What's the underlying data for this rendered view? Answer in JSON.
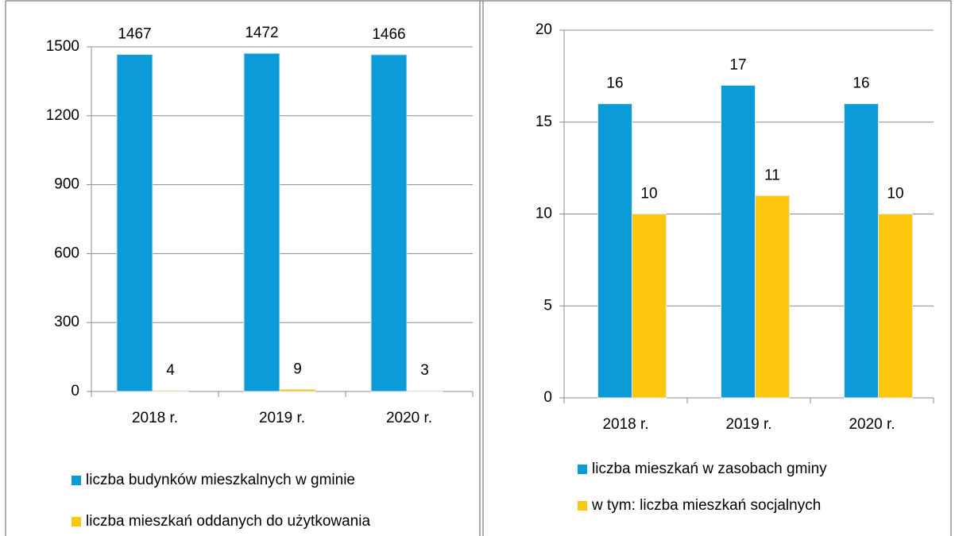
{
  "chart_data": [
    {
      "type": "bar",
      "categories": [
        "2018 r.",
        "2019 r.",
        "2020 r."
      ],
      "series": [
        {
          "name": "liczba budynków mieszkalnych w gminie",
          "color": "#0b9bd9",
          "values": [
            1467,
            1472,
            1466
          ]
        },
        {
          "name": "liczba mieszkań oddanych do użytkowania",
          "color": "#fcc70c",
          "values": [
            4,
            9,
            3
          ]
        }
      ],
      "ylim": [
        0,
        1500
      ],
      "yticks": [
        0,
        300,
        600,
        900,
        1200,
        1500
      ],
      "grid": true,
      "legend": "bottom"
    },
    {
      "type": "bar",
      "categories": [
        "2018 r.",
        "2019 r.",
        "2020 r."
      ],
      "series": [
        {
          "name": "liczba mieszkań w zasobach gminy",
          "color": "#0b9bd9",
          "values": [
            16,
            17,
            16
          ]
        },
        {
          "name": "w tym: liczba mieszkań socjalnych",
          "color": "#fcc70c",
          "values": [
            10,
            11,
            10
          ]
        }
      ],
      "ylim": [
        0,
        20
      ],
      "yticks": [
        0,
        5,
        10,
        15,
        20
      ],
      "grid": true,
      "legend": "bottom"
    }
  ]
}
